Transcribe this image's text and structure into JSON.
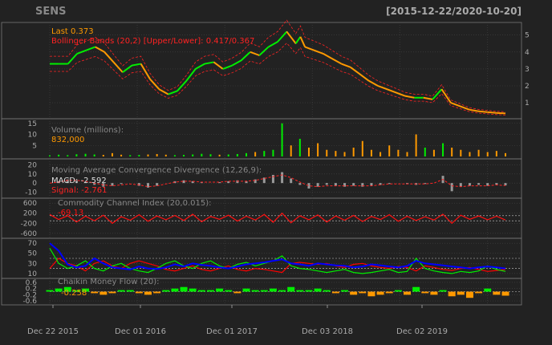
{
  "chart_data": {
    "type": "line",
    "title": "SENS",
    "date_range": "[2015-12-22/2020-10-20]",
    "x_tick_labels": [
      "Dec 22 2015",
      "Dec 01 2016",
      "Dec 01 2017",
      "Dec 03 2018",
      "Dec 02 2019"
    ],
    "colors": {
      "background": "#222222",
      "grid": "#444444",
      "frame": "#777777",
      "axis_text": "#aaaaaa",
      "up": "#00ee00",
      "down": "#ff9900",
      "band": "#ff2222",
      "ma": "#ffffff",
      "signal": "#ff2222",
      "macd_hist": "#999999",
      "cci": "#ff1111",
      "adx": "#0000ff",
      "plus_di": "#00ee00",
      "minus_di": "#ff0000",
      "last_label": "#ff9900"
    },
    "panels": {
      "price": {
        "legend_last": "Last 0.373",
        "legend_bbands": "Bollinger Bands (20,2) [Upper/Lower]: 0.417/0.367",
        "y_ticks": [
          1,
          2,
          3,
          4,
          5
        ],
        "ylim": [
          0.2,
          5.6
        ],
        "series": {
          "x": [
            0,
            0.02,
            0.04,
            0.06,
            0.08,
            0.1,
            0.12,
            0.14,
            0.16,
            0.18,
            0.2,
            0.22,
            0.24,
            0.26,
            0.28,
            0.3,
            0.32,
            0.34,
            0.36,
            0.38,
            0.4,
            0.42,
            0.44,
            0.46,
            0.48,
            0.5,
            0.52,
            0.54,
            0.55,
            0.56,
            0.58,
            0.6,
            0.62,
            0.64,
            0.66,
            0.68,
            0.7,
            0.72,
            0.74,
            0.76,
            0.78,
            0.8,
            0.82,
            0.84,
            0.86,
            0.88,
            0.9,
            0.92,
            0.94,
            0.96,
            0.98,
            1.0
          ],
          "close": [
            3.3,
            3.3,
            3.3,
            3.9,
            4.1,
            4.3,
            4.0,
            3.4,
            2.8,
            3.2,
            3.3,
            2.4,
            1.8,
            1.5,
            1.7,
            2.3,
            3.0,
            3.3,
            3.4,
            3.0,
            3.2,
            3.5,
            4.0,
            3.8,
            4.3,
            4.6,
            5.2,
            4.5,
            4.9,
            4.3,
            4.1,
            3.9,
            3.6,
            3.3,
            3.1,
            2.7,
            2.3,
            2.0,
            1.8,
            1.6,
            1.4,
            1.3,
            1.3,
            1.2,
            1.8,
            1.0,
            0.8,
            0.6,
            0.5,
            0.45,
            0.4,
            0.37
          ]
        }
      },
      "volume": {
        "legend_title": "Volume (millions):",
        "legend_value": "832,000",
        "y_ticks": [
          5,
          10,
          15
        ],
        "ylim": [
          0,
          16
        ],
        "values": [
          0.5,
          0.8,
          0.6,
          1.0,
          1.2,
          0.9,
          0.7,
          1.5,
          0.8,
          0.6,
          0.7,
          0.9,
          1.1,
          0.8,
          0.6,
          0.7,
          0.9,
          1.2,
          1.0,
          0.8,
          0.9,
          1.1,
          1.5,
          2.0,
          2.5,
          3.0,
          15.0,
          5.0,
          8.0,
          4.0,
          6.0,
          3.0,
          2.5,
          2.0,
          4.0,
          7.0,
          3.0,
          2.0,
          5.0,
          3.0,
          2.0,
          10.0,
          4.0,
          3.0,
          6.0,
          4.0,
          3.0,
          2.0,
          3.0,
          2.0,
          2.5,
          1.5
        ]
      },
      "macd": {
        "legend_title": "Moving Average Convergence Divergence (12,26,9):",
        "legend_macd": "MACD: -2.592",
        "legend_signal": "Signal: -2.761",
        "y_ticks": [
          -10,
          0,
          10,
          20
        ],
        "ylim": [
          -14,
          24
        ],
        "macd": [
          0,
          2,
          4,
          3,
          1,
          -2,
          -4,
          -3,
          -1,
          0,
          -3,
          -5,
          -3,
          0,
          2,
          3,
          2,
          1,
          0,
          1,
          2,
          3,
          2,
          4,
          6,
          9,
          12,
          5,
          -2,
          -6,
          -4,
          -2,
          -3,
          -4,
          -3,
          -4,
          -3,
          -2,
          -1,
          0,
          -1,
          -2,
          -1,
          0,
          8,
          -9,
          -4,
          -3,
          -2,
          -3,
          -2,
          -2.6
        ],
        "signal": [
          0,
          1,
          3,
          3,
          2,
          0,
          -2,
          -3,
          -2,
          -1,
          -2,
          -4,
          -3,
          -1,
          1,
          2,
          2,
          1,
          1,
          1,
          2,
          2,
          2,
          3,
          5,
          7,
          9,
          6,
          1,
          -3,
          -4,
          -3,
          -3,
          -3,
          -3,
          -3,
          -3,
          -2,
          -1,
          -1,
          -1,
          -1,
          -1,
          0,
          4,
          -3,
          -4,
          -3,
          -3,
          -3,
          -2,
          -2.8
        ]
      },
      "cci": {
        "legend_title": "Commodity Channel Index (20,0.015):",
        "legend_value": "-69.13",
        "y_ticks": [
          -600,
          -200,
          200,
          600
        ],
        "ylim": [
          -700,
          700
        ],
        "values": [
          150,
          -50,
          100,
          -150,
          80,
          -100,
          120,
          -200,
          60,
          -80,
          140,
          -120,
          90,
          -60,
          110,
          -90,
          160,
          -140,
          70,
          -40,
          120,
          -110,
          80,
          -70,
          150,
          -160,
          200,
          -180,
          100,
          -60,
          130,
          -150,
          90,
          -80,
          110,
          -130,
          70,
          -50,
          140,
          -120,
          80,
          -90,
          60,
          -70,
          160,
          -200,
          120,
          -40,
          90,
          -60,
          80,
          -69
        ]
      },
      "dmi": {
        "y_ticks": [
          10,
          30,
          50,
          70
        ],
        "ylim": [
          5,
          75
        ],
        "adx": [
          70,
          55,
          28,
          22,
          25,
          40,
          30,
          22,
          20,
          18,
          24,
          20,
          19,
          22,
          28,
          24,
          30,
          27,
          25,
          22,
          20,
          24,
          28,
          30,
          32,
          35,
          38,
          30,
          28,
          25,
          30,
          28,
          26,
          25,
          22,
          24,
          28,
          26,
          24,
          22,
          25,
          35,
          30,
          28,
          26,
          24,
          22,
          20,
          22,
          24,
          22,
          20
        ],
        "plus_di": [
          60,
          30,
          20,
          25,
          35,
          20,
          15,
          25,
          30,
          20,
          15,
          12,
          20,
          30,
          35,
          25,
          20,
          30,
          35,
          25,
          20,
          28,
          32,
          25,
          30,
          35,
          45,
          25,
          20,
          18,
          15,
          12,
          15,
          18,
          12,
          10,
          12,
          15,
          18,
          12,
          14,
          40,
          20,
          15,
          12,
          10,
          14,
          12,
          15,
          25,
          18,
          14
        ],
        "minus_di": [
          20,
          40,
          30,
          25,
          15,
          30,
          35,
          25,
          20,
          30,
          35,
          30,
          25,
          18,
          15,
          20,
          25,
          18,
          15,
          20,
          25,
          18,
          15,
          20,
          18,
          15,
          12,
          30,
          32,
          30,
          28,
          30,
          25,
          22,
          28,
          30,
          25,
          22,
          20,
          24,
          22,
          15,
          25,
          22,
          18,
          16,
          20,
          22,
          18,
          14,
          16,
          18
        ]
      },
      "chaikin": {
        "legend_title": "Chaikin Money Flow (20):",
        "legend_value": "-0.258",
        "y_ticks": [
          -0.6,
          -0.2,
          0.2,
          0.6
        ],
        "ylim": [
          -0.7,
          0.7
        ],
        "values": [
          0.1,
          0.2,
          0.3,
          0.1,
          0.2,
          -0.1,
          -0.2,
          -0.1,
          0.1,
          0.1,
          -0.1,
          -0.2,
          -0.1,
          0.1,
          0.2,
          0.3,
          0.2,
          0.1,
          0.1,
          0.2,
          0.1,
          -0.1,
          0.2,
          0.1,
          0.1,
          0.2,
          0.1,
          0.3,
          0.1,
          0.1,
          0.2,
          0.1,
          -0.1,
          0.1,
          -0.2,
          -0.1,
          -0.3,
          -0.2,
          -0.1,
          0.1,
          -0.2,
          0.3,
          -0.1,
          -0.2,
          0.1,
          -0.3,
          -0.2,
          -0.4,
          -0.1,
          0.2,
          -0.2,
          -0.26
        ]
      }
    }
  }
}
